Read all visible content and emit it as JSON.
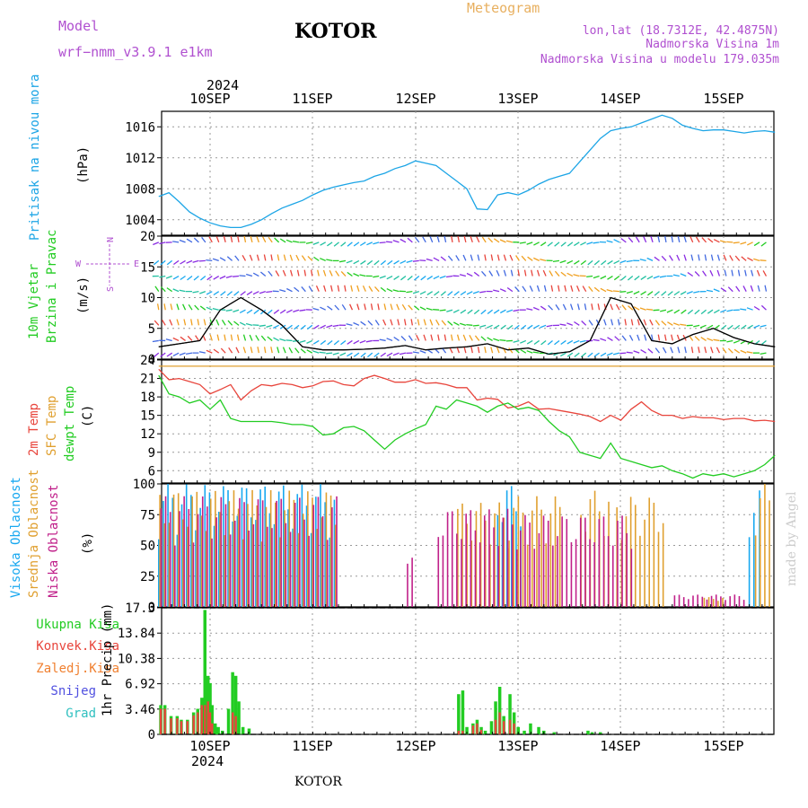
{
  "header": {
    "model_label": "Model",
    "model_name": "wrf−nmm_v3.9.1  e1km",
    "station": "KOTOR",
    "title": "Meteogram",
    "lonlat": "lon,lat (18.7312E, 42.4875N)",
    "elevation": "Nadmorska Visina 1m",
    "model_elevation": "Nadmorska Visina u modelu 179.035m",
    "top_year": "2024",
    "bottom_year": "2024",
    "footer_station": "KOTOR",
    "watermark": "made by Angel"
  },
  "colors": {
    "pressure": "#1ca5e6",
    "t2m": "#e8453c",
    "sfc": "#e0a030",
    "dewpt": "#22cc22",
    "high_cloud": "#18a8f0",
    "mid_cloud": "#e0a030",
    "low_cloud": "#c0208a",
    "total_precip": "#22cc22",
    "conv_precip": "#e8453c",
    "frozen_precip": "#f08030",
    "snow": "#5050e0",
    "grad": "#30c0c0",
    "wind_label": "#22cc22",
    "compass": "#b050d0"
  },
  "chart_data": [
    {
      "type": "line",
      "panel": "pressure",
      "ylabel_lines": [
        "Pritisak na nivou mora"
      ],
      "unit": "(hPa)",
      "x_day_ticks": [
        "10SEP",
        "11SEP",
        "12SEP",
        "13SEP",
        "14SEP",
        "15SEP"
      ],
      "ylim": [
        1002,
        1018
      ],
      "yticks": [
        "1004",
        "1008",
        "1012",
        "1016"
      ],
      "grid": true,
      "series": [
        {
          "key": "pressure",
          "x": [
            0,
            0.1,
            0.2,
            0.3,
            0.4,
            0.5,
            0.6,
            0.7,
            0.8,
            0.9,
            1.0,
            1.1,
            1.2,
            1.3,
            1.4,
            1.5,
            1.6,
            1.7,
            1.8,
            1.9,
            2.0,
            2.1,
            2.2,
            2.3,
            2.4,
            2.5,
            2.6,
            2.7,
            2.8,
            2.9,
            3.0,
            3.1,
            3.2,
            3.3,
            3.4,
            3.5,
            3.6,
            3.7,
            3.8,
            3.9,
            4.0,
            4.1,
            4.2,
            4.3,
            4.4,
            4.5,
            4.6,
            4.7,
            4.8,
            4.9,
            5.0,
            5.1,
            5.2,
            5.3,
            5.4,
            5.5,
            5.6,
            5.7,
            5.8,
            5.9,
            6.0
          ],
          "values": [
            1007.0,
            1007.5,
            1006.3,
            1005.0,
            1004.2,
            1003.6,
            1003.2,
            1003.0,
            1003.0,
            1003.4,
            1004.0,
            1004.8,
            1005.5,
            1006.0,
            1006.5,
            1007.2,
            1007.8,
            1008.2,
            1008.5,
            1008.8,
            1009.0,
            1009.6,
            1010.0,
            1010.6,
            1011.0,
            1011.6,
            1011.3,
            1011.0,
            1010.0,
            1009.0,
            1008.0,
            1005.4,
            1005.3,
            1007.2,
            1007.5,
            1007.2,
            1007.8,
            1008.6,
            1009.2,
            1009.6,
            1010.0,
            1011.5,
            1013.0,
            1014.5,
            1015.5,
            1015.8,
            1016.0,
            1016.5,
            1017.0,
            1017.5,
            1017.1,
            1016.2,
            1015.8,
            1015.5,
            1015.6,
            1015.6,
            1015.4,
            1015.2,
            1015.4,
            1015.5,
            1015.3
          ]
        }
      ]
    },
    {
      "type": "line",
      "panel": "wind",
      "ylabel_lines": [
        "10m Vjetar",
        "Brzina i Pravac"
      ],
      "unit": "(m/s)",
      "compass": {
        "north": "N",
        "south": "S",
        "west": "W",
        "east": "E"
      },
      "ylim": [
        0,
        20
      ],
      "yticks": [
        "0",
        "5",
        "10",
        "15",
        "20"
      ],
      "grid": true,
      "series": [
        {
          "name": "speed",
          "x": [
            0,
            0.2,
            0.4,
            0.6,
            0.8,
            1.0,
            1.2,
            1.4,
            1.6,
            1.8,
            2.0,
            2.2,
            2.4,
            2.6,
            2.8,
            3.0,
            3.2,
            3.4,
            3.6,
            3.8,
            4.0,
            4.2,
            4.4,
            4.6,
            4.8,
            5.0,
            5.2,
            5.4,
            5.6,
            5.8,
            6.0
          ],
          "values": [
            2.0,
            2.5,
            3.0,
            8.0,
            10.0,
            8.0,
            5.5,
            2.0,
            1.5,
            1.5,
            1.6,
            1.8,
            2.2,
            1.5,
            1.8,
            2.0,
            2.5,
            1.5,
            1.8,
            0.8,
            1.2,
            3.0,
            10.0,
            9.0,
            3.0,
            2.5,
            4.0,
            5.0,
            3.5,
            2.5,
            2.0
          ]
        }
      ]
    },
    {
      "type": "line",
      "panel": "temperature",
      "ylabel_lines": [
        "2m Temp",
        "SFC Temp",
        "dewpt Temp"
      ],
      "unit": "(C)",
      "ylim": [
        4,
        24
      ],
      "yticks": [
        "6",
        "9",
        "12",
        "15",
        "18",
        "21",
        "24"
      ],
      "grid": true,
      "series": [
        {
          "key": "t2m",
          "x": [
            0,
            0.1,
            0.2,
            0.3,
            0.4,
            0.5,
            0.6,
            0.7,
            0.8,
            0.9,
            1.0,
            1.1,
            1.2,
            1.3,
            1.4,
            1.5,
            1.6,
            1.7,
            1.8,
            1.9,
            2.0,
            2.1,
            2.2,
            2.3,
            2.4,
            2.5,
            2.6,
            2.7,
            2.8,
            2.9,
            3.0,
            3.1,
            3.2,
            3.3,
            3.4,
            3.5,
            3.6,
            3.7,
            3.8,
            3.9,
            4.0,
            4.1,
            4.2,
            4.3,
            4.4,
            4.5,
            4.6,
            4.7,
            4.8,
            4.9,
            5.0,
            5.1,
            5.2,
            5.3,
            5.4,
            5.5,
            5.6,
            5.7,
            5.8,
            5.9,
            6.0
          ],
          "values": [
            22.5,
            20.8,
            21.0,
            20.5,
            20.0,
            18.5,
            19.2,
            20.0,
            17.5,
            19.0,
            20.0,
            19.8,
            20.2,
            20.0,
            19.5,
            19.8,
            20.5,
            20.6,
            20.0,
            19.8,
            21.0,
            21.5,
            21.0,
            20.4,
            20.4,
            20.8,
            20.2,
            20.3,
            20.0,
            19.5,
            19.5,
            17.5,
            17.8,
            17.6,
            16.2,
            16.5,
            17.2,
            16.0,
            16.1,
            15.8,
            15.5,
            15.2,
            14.8,
            14.0,
            15.0,
            14.2,
            16.0,
            17.2,
            15.8,
            15.0,
            15.0,
            14.5,
            14.8,
            14.6,
            14.6,
            14.3,
            14.5,
            14.5,
            14.1,
            14.2,
            14.0
          ]
        },
        {
          "key": "sfc",
          "x": [
            0,
            6
          ],
          "values": [
            23.0,
            23.0
          ]
        },
        {
          "key": "dewpt",
          "x": [
            0,
            0.1,
            0.2,
            0.3,
            0.4,
            0.5,
            0.6,
            0.7,
            0.8,
            0.9,
            1.0,
            1.1,
            1.2,
            1.3,
            1.4,
            1.5,
            1.6,
            1.7,
            1.8,
            1.9,
            2.0,
            2.1,
            2.2,
            2.3,
            2.4,
            2.5,
            2.6,
            2.7,
            2.8,
            2.9,
            3.0,
            3.1,
            3.2,
            3.3,
            3.4,
            3.5,
            3.6,
            3.7,
            3.8,
            3.9,
            4.0,
            4.1,
            4.2,
            4.3,
            4.4,
            4.5,
            4.6,
            4.7,
            4.8,
            4.9,
            5.0,
            5.1,
            5.2,
            5.3,
            5.4,
            5.5,
            5.6,
            5.7,
            5.8,
            5.9,
            6.0
          ],
          "values": [
            21.5,
            18.5,
            18.0,
            17.0,
            17.5,
            16.0,
            17.5,
            14.5,
            14.0,
            14.0,
            14.0,
            14.0,
            13.8,
            13.5,
            13.5,
            13.2,
            11.8,
            12.0,
            13.0,
            13.2,
            12.5,
            11.0,
            9.5,
            11.0,
            12.0,
            12.8,
            13.5,
            16.5,
            16.0,
            17.5,
            17.0,
            16.5,
            15.5,
            16.5,
            17.0,
            16.0,
            16.3,
            15.8,
            14.0,
            12.5,
            11.5,
            9.0,
            8.5,
            8.0,
            10.5,
            8.0,
            7.5,
            7.0,
            6.5,
            6.8,
            6.0,
            5.5,
            4.8,
            5.5,
            5.2,
            5.5,
            5.0,
            5.5,
            6.0,
            7.0,
            8.5
          ]
        }
      ]
    },
    {
      "type": "bar",
      "panel": "clouds",
      "ylabel_lines": [
        "Visoka Oblacnost",
        "Srednja Oblacnost",
        "Niska Oblacnost"
      ],
      "unit": "(%)",
      "ylim": [
        0,
        100
      ],
      "yticks": [
        "0",
        "25",
        "50",
        "75",
        "100"
      ],
      "grid": true,
      "series": [
        {
          "key": "high_cloud",
          "segments": [
            [
              0,
              1.75,
              100
            ],
            [
              3.3,
              3.55,
              100
            ],
            [
              5.75,
              5.8,
              80
            ],
            [
              5.85,
              5.88,
              100
            ]
          ]
        },
        {
          "key": "mid_cloud",
          "segments": [
            [
              0,
              1.75,
              95
            ],
            [
              2.9,
              3.4,
              85
            ],
            [
              3.4,
              3.9,
              90
            ],
            [
              4.1,
              4.4,
              95
            ],
            [
              4.45,
              4.9,
              90
            ],
            [
              5.3,
              5.5,
              8
            ],
            [
              5.8,
              5.95,
              100
            ]
          ]
        },
        {
          "key": "low_cloud",
          "segments": [
            [
              0,
              1.75,
              90
            ],
            [
              2.4,
              2.45,
              40
            ],
            [
              2.7,
              3.5,
              80
            ],
            [
              3.5,
              4.6,
              75
            ],
            [
              5.0,
              5.7,
              10
            ]
          ]
        }
      ]
    },
    {
      "type": "bar",
      "panel": "precip",
      "ylabel_lines": [
        "1hr Precip"
      ],
      "unit": "(mm)",
      "legend": [
        "Ukupna Kisa",
        "Konvek.Kisa",
        "Zaledj.Kisa",
        "Snijeg",
        "Grad"
      ],
      "ylim": [
        0,
        17.3
      ],
      "yticks": [
        "0",
        "3.46",
        "6.92",
        "10.38",
        "13.84",
        "17.3"
      ],
      "grid": true,
      "series": [
        {
          "key": "total_precip",
          "x": [
            0.02,
            0.06,
            0.12,
            0.18,
            0.22,
            0.28,
            0.34,
            0.38,
            0.42,
            0.45,
            0.48,
            0.5,
            0.52,
            0.55,
            0.58,
            0.62,
            0.68,
            0.72,
            0.75,
            0.78,
            0.82,
            0.88,
            2.92,
            2.96,
            3.0,
            3.06,
            3.1,
            3.14,
            3.18,
            3.24,
            3.28,
            3.32,
            3.36,
            3.42,
            3.46,
            3.5,
            3.56,
            3.62,
            3.7,
            3.75,
            3.85,
            4.18,
            4.22,
            4.3
          ],
          "values": [
            4.0,
            4.0,
            2.5,
            2.5,
            2.0,
            2.0,
            3.0,
            3.5,
            5.0,
            17.0,
            8.0,
            7.0,
            4.0,
            1.5,
            1.0,
            0.5,
            3.5,
            8.5,
            8.0,
            4.5,
            1.0,
            0.8,
            5.5,
            6.0,
            1.0,
            1.5,
            2.0,
            1.0,
            0.5,
            1.8,
            4.5,
            6.5,
            2.5,
            5.5,
            3.0,
            1.0,
            0.5,
            1.5,
            1.0,
            0.5,
            0.3,
            0.5,
            0.3,
            0.3
          ]
        },
        {
          "key": "conv_precip",
          "x": [
            0.02,
            0.06,
            0.12,
            0.18,
            0.22,
            0.28,
            0.34,
            0.38,
            0.42,
            0.45,
            0.48,
            0.5,
            0.52,
            0.72,
            0.75,
            2.92,
            2.96,
            3.06,
            3.1,
            3.14,
            3.28,
            3.32,
            3.36,
            3.42,
            3.46
          ],
          "values": [
            3.5,
            3.5,
            2.2,
            2.2,
            1.8,
            1.8,
            2.6,
            3.0,
            4.0,
            4.0,
            4.5,
            3.0,
            1.5,
            3.0,
            2.5,
            0.5,
            0.5,
            1.2,
            1.5,
            0.6,
            2.0,
            3.0,
            1.8,
            2.0,
            1.5
          ]
        }
      ]
    }
  ]
}
